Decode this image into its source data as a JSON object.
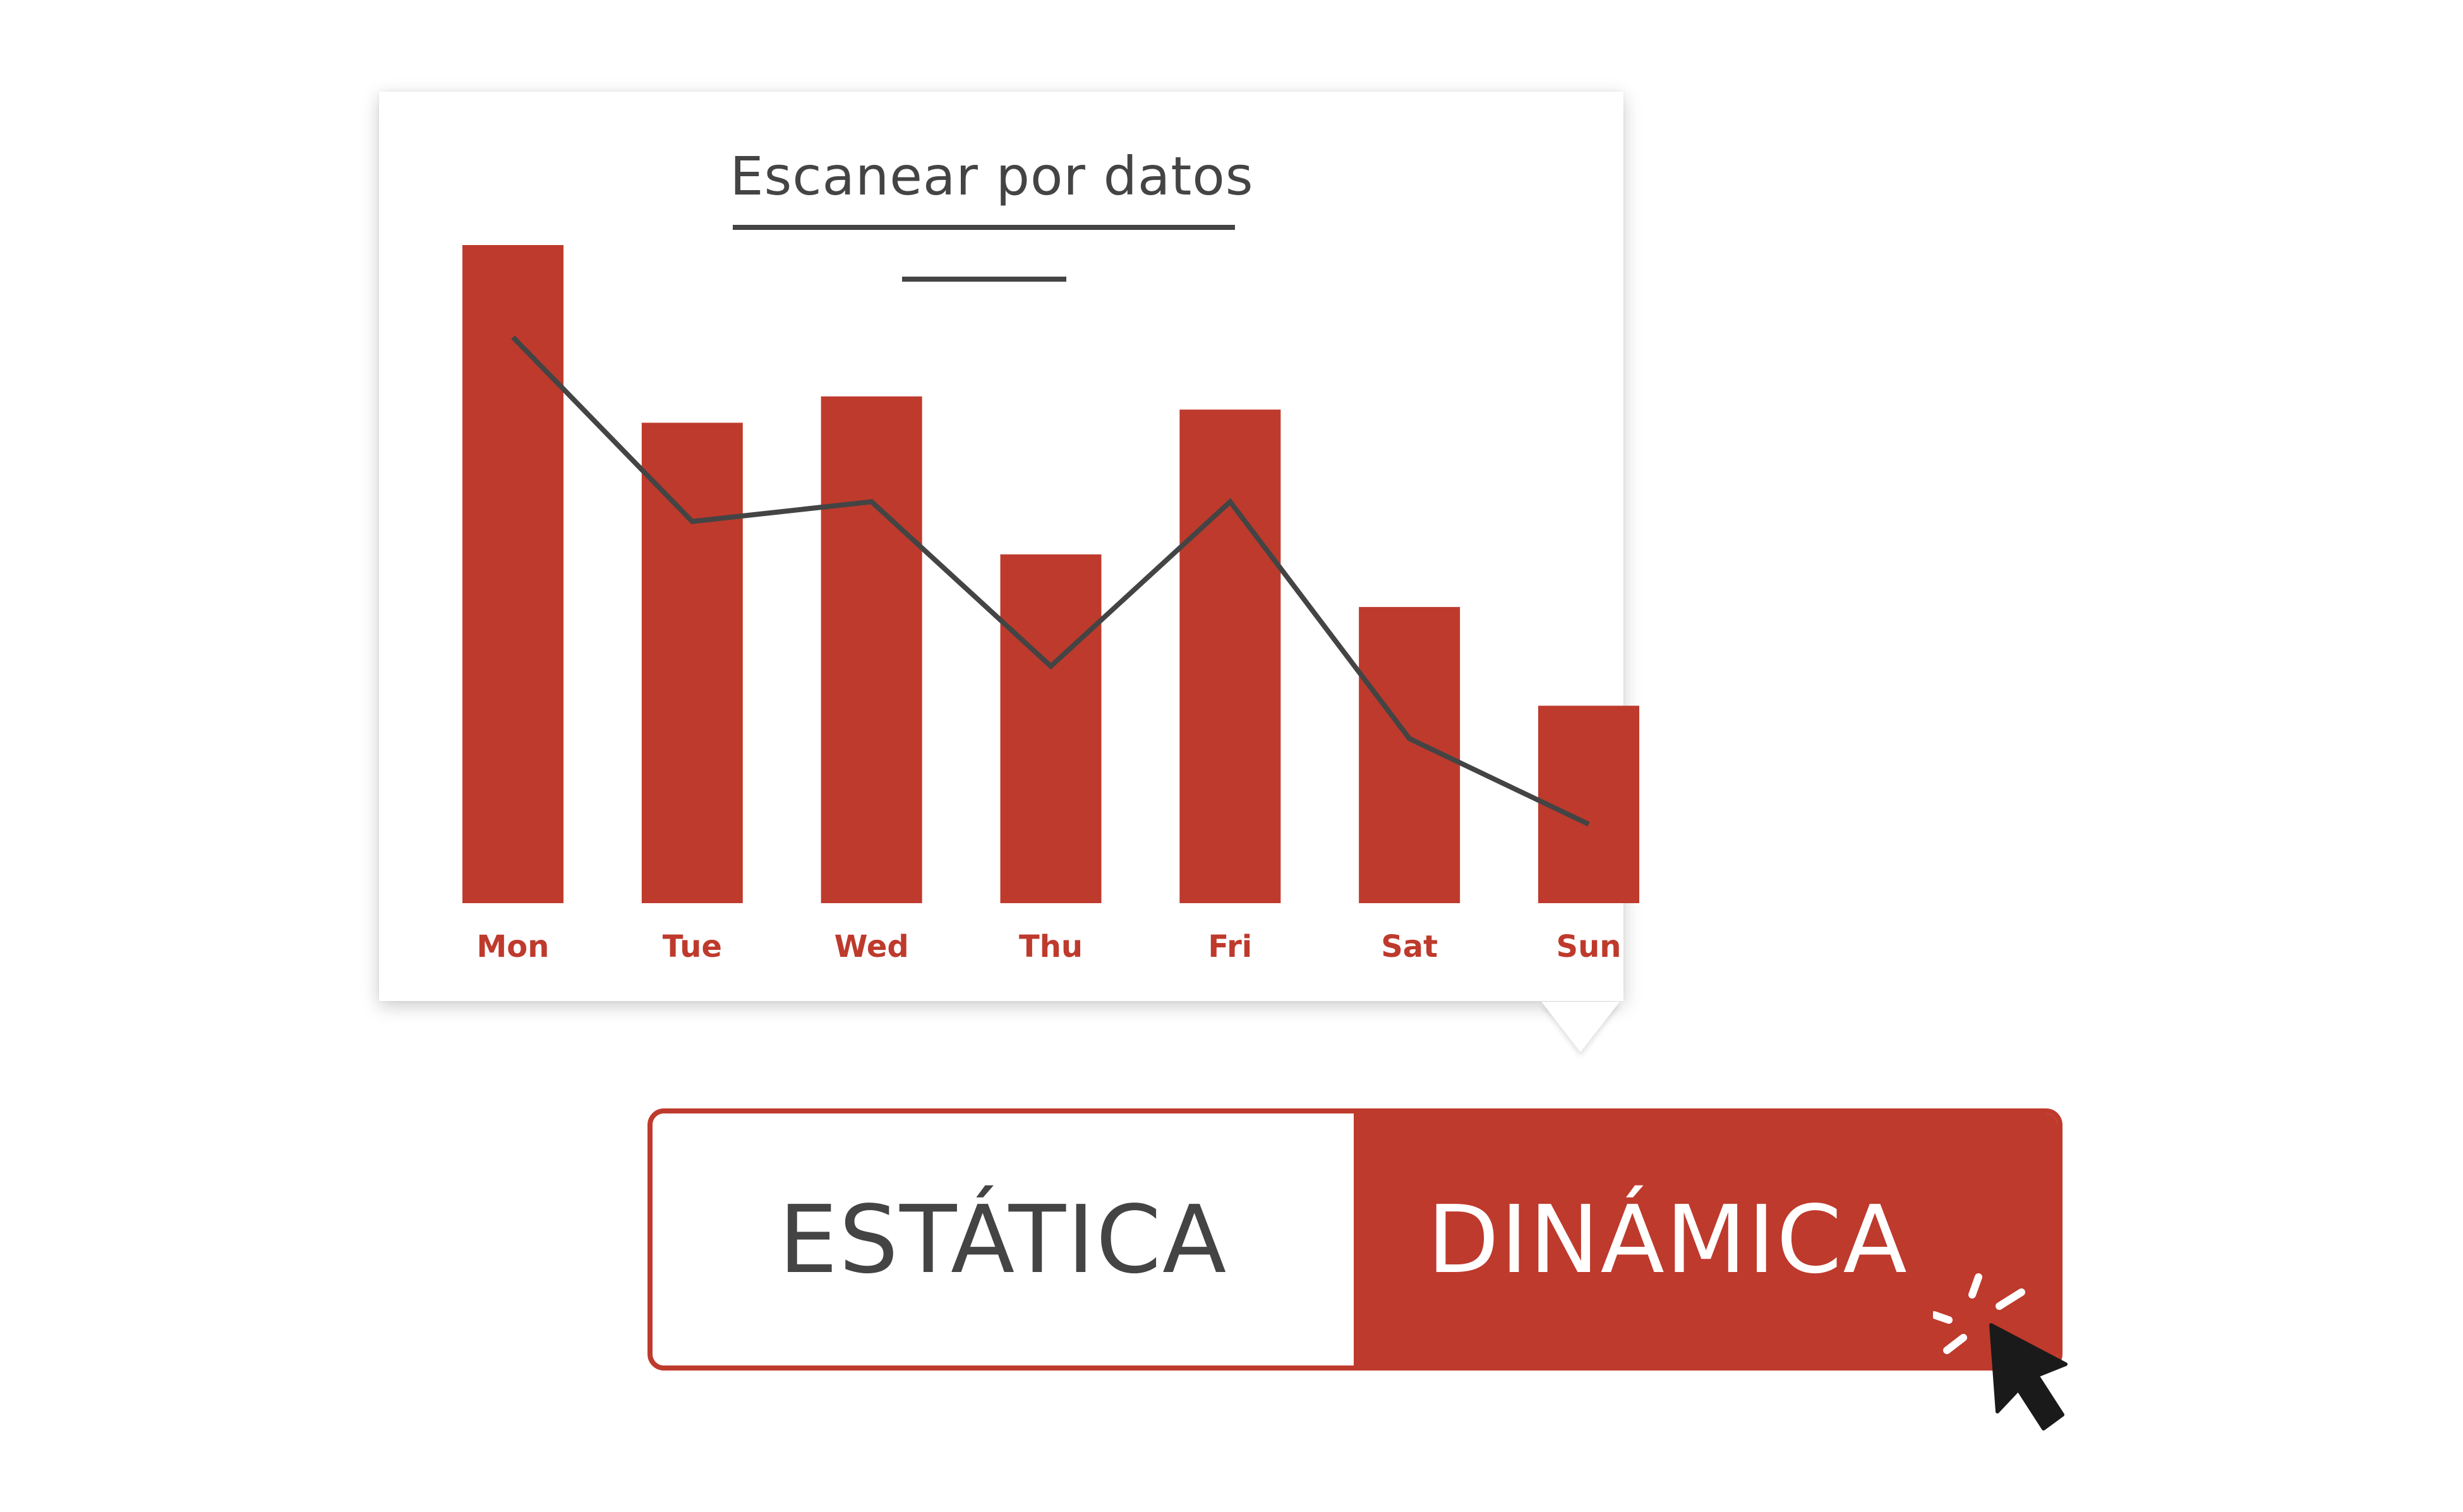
{
  "card": {
    "title": "Escanear por datos"
  },
  "chart_data": {
    "type": "bar",
    "categories": [
      "Mon",
      "Tue",
      "Wed",
      "Thu",
      "Fri",
      "Sat",
      "Sun"
    ],
    "series": [
      {
        "type": "bar",
        "values": [
          100,
          73,
          77,
          53,
          75,
          45,
          30
        ]
      },
      {
        "type": "line",
        "values": [
          86,
          58,
          61,
          36,
          61,
          25,
          12
        ]
      }
    ],
    "ylim": [
      0,
      100
    ],
    "grid": false,
    "title": "Escanear por datos",
    "xlabel": "",
    "ylabel": "",
    "colors": {
      "bar": "#BE3A2C",
      "line": "#444444",
      "tick_label": "#BE3A2C"
    }
  },
  "toggle": {
    "options": [
      "ESTÁTICA",
      "DINÁMICA"
    ],
    "selected": "DINÁMICA"
  },
  "icons": {
    "cursor": "click-cursor-icon"
  },
  "colors": {
    "accent": "#BE3A2C",
    "text_dark": "#444444",
    "background": "#FFFFFF"
  }
}
